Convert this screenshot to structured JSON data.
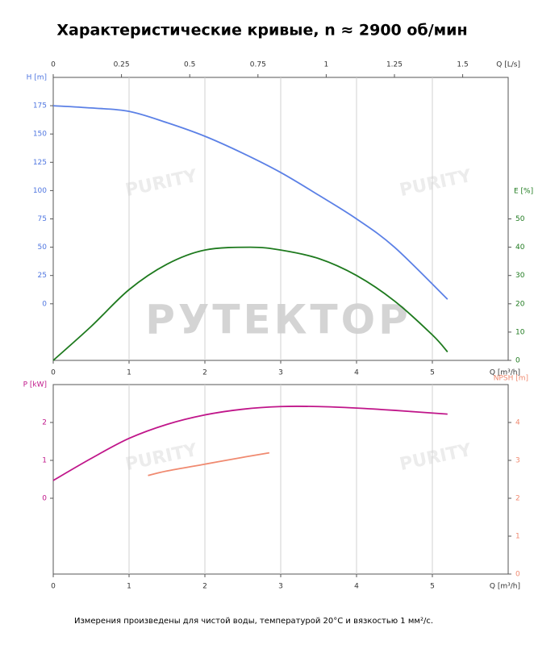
{
  "title": "Характеристические кривые, n ≈ 2900 об/мин",
  "watermark": "РУТЕКТОР",
  "logo_watermark": "PURITY",
  "footnote": "Измерения произведены для чистой воды, температурой 20°C и вязкостью 1 мм²/с.",
  "chart_data": [
    {
      "type": "line",
      "xlabel": "Q [m³/h]",
      "xlim": [
        0,
        6
      ],
      "xticks": [
        0,
        1,
        2,
        3,
        4,
        5
      ],
      "x2label": "Q [L/s]",
      "x2lim": [
        0,
        1.6667
      ],
      "x2ticks": [
        0,
        0.25,
        0.5,
        0.75,
        1,
        1.25,
        1.5
      ],
      "ylabel": "H [m]",
      "ylim": [
        -50,
        200
      ],
      "yticks": [
        0,
        25,
        50,
        75,
        100,
        125,
        150,
        175
      ],
      "ycolor": "#4f76e0",
      "y2label": "E [%]",
      "y2lim": [
        0,
        100
      ],
      "y2ticks": [
        0,
        10,
        20,
        30,
        40,
        50
      ],
      "y2color": "#1e7a1e",
      "grid": true,
      "series": [
        {
          "name": "H",
          "color": "#5b80e6",
          "x": [
            0,
            0.5,
            1,
            1.5,
            2,
            2.5,
            3,
            3.5,
            4,
            4.5,
            5.2
          ],
          "values": [
            175,
            173,
            170,
            160,
            148,
            133,
            116,
            96,
            75,
            50,
            4
          ]
        },
        {
          "name": "E",
          "color": "#1e7a1e",
          "axis": "y2",
          "x": [
            0,
            0.5,
            1,
            1.5,
            2,
            2.6,
            3,
            3.5,
            4,
            4.5,
            5,
            5.2
          ],
          "values": [
            0,
            12,
            25,
            34,
            39,
            40,
            39,
            36,
            30,
            21,
            9,
            3
          ]
        }
      ]
    },
    {
      "type": "line",
      "xlabel": "Q [m³/h]",
      "xlim": [
        0,
        6
      ],
      "xticks": [
        0,
        1,
        2,
        3,
        4,
        5
      ],
      "ylabel": "P [kW]",
      "ylim": [
        -2,
        3
      ],
      "yticks": [
        0,
        1,
        2
      ],
      "ycolor": "#c0168a",
      "y2label": "NPSH [m]",
      "y2lim": [
        0,
        5
      ],
      "y2ticks": [
        0,
        1,
        2,
        3,
        4
      ],
      "y2color": "#f08a70",
      "grid": true,
      "series": [
        {
          "name": "P",
          "color": "#c0168a",
          "x": [
            0,
            0.5,
            1,
            1.5,
            2,
            2.5,
            3,
            3.5,
            4,
            4.5,
            5.2
          ],
          "values": [
            0.47,
            1.05,
            1.58,
            1.95,
            2.2,
            2.35,
            2.42,
            2.42,
            2.38,
            2.32,
            2.22
          ]
        },
        {
          "name": "NPSH",
          "color": "#f08a70",
          "axis": "y2",
          "x": [
            1.25,
            1.5,
            2,
            2.5,
            2.85
          ],
          "values": [
            2.6,
            2.72,
            2.9,
            3.08,
            3.2
          ]
        }
      ]
    }
  ]
}
